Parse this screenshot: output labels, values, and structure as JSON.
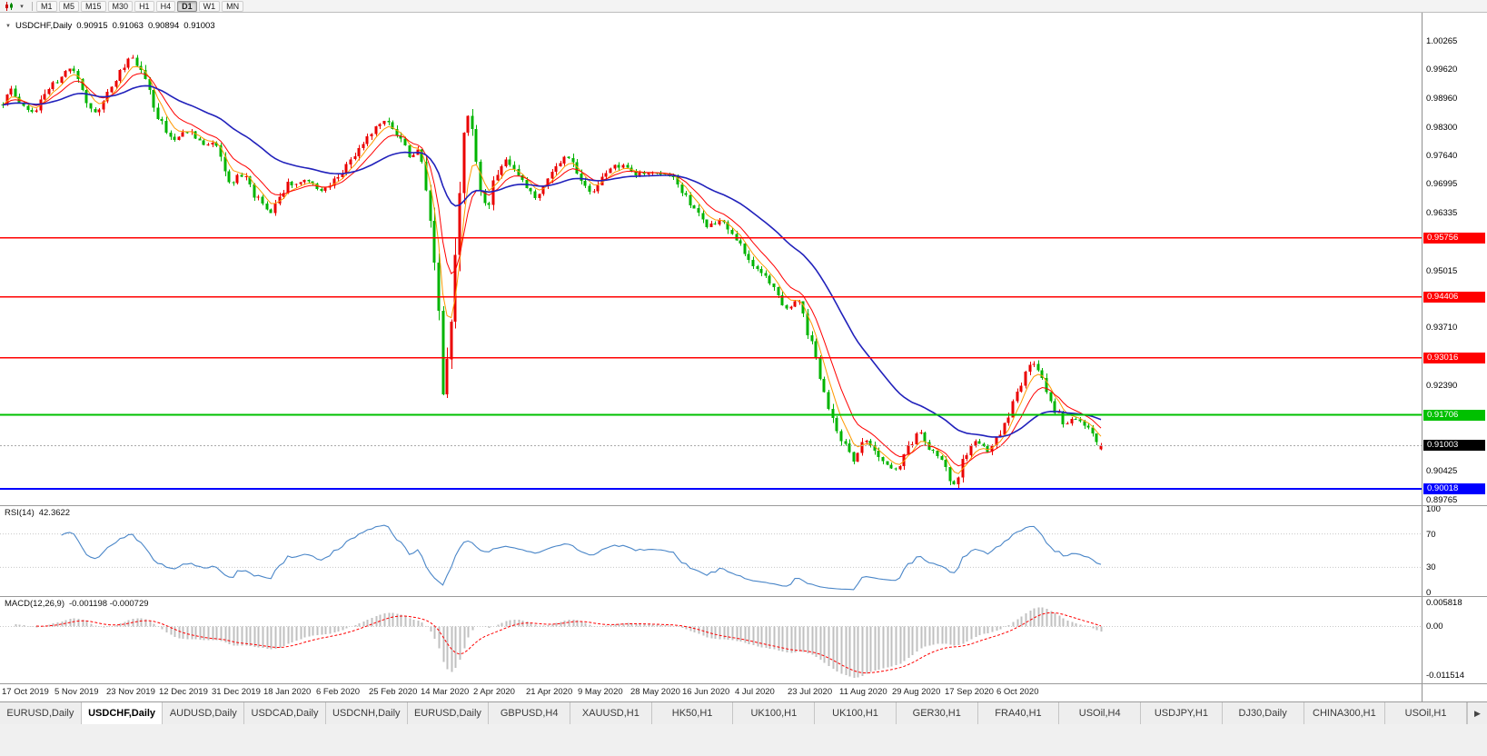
{
  "window": {
    "bg": "#f0f0f0",
    "chart_bg": "#ffffff"
  },
  "icons": {
    "collapse": "▼",
    "dropdown": "▾",
    "scroll_right": "▶"
  },
  "colors": {
    "candle_up": "#ea0000",
    "candle_down": "#00b400",
    "ma_fast": "#ff9900",
    "ma_mid": "#ff0000",
    "ma_slow": "#2121bb",
    "rsi_line": "#4a86c8",
    "macd_hist": "#c0c0c0",
    "macd_signal": "#ff0000",
    "bid_badge_bg": "#000000",
    "accent_red": "#ff0000",
    "accent_green": "#00c000",
    "accent_blue": "#0000ff"
  },
  "toolbar": {
    "timeframes": [
      "M1",
      "M5",
      "M15",
      "M30",
      "H1",
      "H4",
      "D1",
      "W1",
      "MN"
    ],
    "active_timeframe": "D1"
  },
  "chart": {
    "quote": {
      "symbol": "USDCHF,Daily",
      "open": "0.90915",
      "high": "0.91063",
      "low": "0.90894",
      "close": "0.91003"
    },
    "price_axis_ticks": [
      "1.00265",
      "0.99620",
      "0.98960",
      "0.98300",
      "0.97640",
      "0.96995",
      "0.96335",
      "0.95015",
      "0.93710",
      "0.92390",
      "0.90425",
      "0.89765"
    ],
    "hlines": [
      {
        "label": "0.95756",
        "price": 0.95756,
        "color": "#ff0000",
        "width": 1.4
      },
      {
        "label": "0.94406",
        "price": 0.94406,
        "color": "#ff0000",
        "width": 1.4
      },
      {
        "label": "0.93016",
        "price": 0.93016,
        "color": "#ff0000",
        "width": 1.4
      },
      {
        "label": "0.91706",
        "price": 0.91706,
        "color": "#00c000",
        "width": 2
      },
      {
        "label": "0.90018",
        "price": 0.90018,
        "color": "#0000ff",
        "width": 2
      }
    ],
    "bid_line": {
      "label": "0.91003",
      "price": 0.91003
    },
    "dates": [
      "17 Oct 2019",
      "5 Nov 2019",
      "23 Nov 2019",
      "12 Dec 2019",
      "31 Dec 2019",
      "18 Jan 2020",
      "6 Feb 2020",
      "25 Feb 2020",
      "14 Mar 2020",
      "2 Apr 2020",
      "21 Apr 2020",
      "9 May 2020",
      "28 May 2020",
      "16 Jun 2020",
      "4 Jul 2020",
      "23 Jul 2020",
      "11 Aug 2020",
      "29 Aug 2020",
      "17 Sep 2020",
      "6 Oct 2020"
    ]
  },
  "rsi": {
    "label": "RSI(14)",
    "value_text": "42.3622",
    "axis": [
      "100",
      "70",
      "30",
      "0"
    ],
    "levels": [
      70,
      30
    ]
  },
  "macd": {
    "label": "MACD(12,26,9)",
    "values_text": "-0.001198 -0.000729",
    "axis": [
      "0.005818",
      "0.00",
      "-0.011514"
    ]
  },
  "tabs": {
    "active_index": 1,
    "items": [
      "EURUSD,Daily",
      "USDCHF,Daily",
      "AUDUSD,Daily",
      "USDCAD,Daily",
      "USDCNH,Daily",
      "EURUSD,Daily",
      "GBPUSD,H4",
      "XAUUSD,H1",
      "HK50,H1",
      "UK100,H1",
      "UK100,H1",
      "GER30,H1",
      "FRA40,H1",
      "USOil,H4",
      "USDJPY,H1",
      "DJ30,Daily",
      "CHINA300,H1",
      "USOil,H1"
    ]
  },
  "chart_data": {
    "type": "candlestick",
    "symbol": "USDCHF",
    "timeframe": "Daily",
    "visible_range": {
      "start": "17 Oct 2019",
      "end": "6 Oct 2020"
    },
    "last_candle": {
      "open": 0.90915,
      "high": 0.91063,
      "low": 0.90894,
      "close": 0.91003
    },
    "support_resistance_levels": [
      0.95756,
      0.94406,
      0.93016,
      0.91706,
      0.90018
    ],
    "indicators": {
      "rsi14": 42.3622,
      "macd_main": -0.001198,
      "macd_signal": -0.000729
    },
    "price_path": [
      [
        2,
        0.9878
      ],
      [
        12,
        0.9912
      ],
      [
        24,
        0.9886
      ],
      [
        38,
        0.9862
      ],
      [
        52,
        0.9916
      ],
      [
        68,
        0.9948
      ],
      [
        80,
        0.9962
      ],
      [
        92,
        0.9898
      ],
      [
        104,
        0.9856
      ],
      [
        118,
        0.9906
      ],
      [
        132,
        0.9958
      ],
      [
        145,
        0.9994
      ],
      [
        158,
        0.9952
      ],
      [
        172,
        0.9864
      ],
      [
        188,
        0.98
      ],
      [
        205,
        0.9823
      ],
      [
        222,
        0.9796
      ],
      [
        238,
        0.9791
      ],
      [
        252,
        0.9702
      ],
      [
        268,
        0.9722
      ],
      [
        282,
        0.9668
      ],
      [
        298,
        0.9638
      ],
      [
        315,
        0.9696
      ],
      [
        335,
        0.9707
      ],
      [
        355,
        0.9686
      ],
      [
        375,
        0.9723
      ],
      [
        395,
        0.9776
      ],
      [
        412,
        0.983
      ],
      [
        425,
        0.9847
      ],
      [
        438,
        0.9808
      ],
      [
        452,
        0.9762
      ],
      [
        462,
        0.978
      ],
      [
        470,
        0.969
      ],
      [
        477,
        0.956
      ],
      [
        483,
        0.938
      ],
      [
        488,
        0.92
      ],
      [
        493,
        0.931
      ],
      [
        498,
        0.942
      ],
      [
        503,
        0.956
      ],
      [
        509,
        0.978
      ],
      [
        513,
        0.9862
      ],
      [
        519,
        0.984
      ],
      [
        527,
        0.9705
      ],
      [
        536,
        0.9642
      ],
      [
        546,
        0.972
      ],
      [
        556,
        0.9758
      ],
      [
        566,
        0.9738
      ],
      [
        578,
        0.97
      ],
      [
        588,
        0.9664
      ],
      [
        600,
        0.969
      ],
      [
        612,
        0.9744
      ],
      [
        625,
        0.9768
      ],
      [
        638,
        0.9702
      ],
      [
        650,
        0.9674
      ],
      [
        662,
        0.9712
      ],
      [
        675,
        0.9738
      ],
      [
        688,
        0.9744
      ],
      [
        700,
        0.972
      ],
      [
        712,
        0.9722
      ],
      [
        725,
        0.973
      ],
      [
        738,
        0.9716
      ],
      [
        750,
        0.9688
      ],
      [
        765,
        0.9636
      ],
      [
        780,
        0.96
      ],
      [
        795,
        0.9618
      ],
      [
        808,
        0.9576
      ],
      [
        820,
        0.9546
      ],
      [
        835,
        0.95
      ],
      [
        850,
        0.9466
      ],
      [
        865,
        0.9416
      ],
      [
        878,
        0.9438
      ],
      [
        892,
        0.934
      ],
      [
        905,
        0.924
      ],
      [
        918,
        0.9152
      ],
      [
        930,
        0.91
      ],
      [
        942,
        0.9062
      ],
      [
        952,
        0.9124
      ],
      [
        963,
        0.9082
      ],
      [
        975,
        0.9052
      ],
      [
        988,
        0.904
      ],
      [
        1000,
        0.9096
      ],
      [
        1012,
        0.9134
      ],
      [
        1025,
        0.9092
      ],
      [
        1038,
        0.906
      ],
      [
        1050,
        0.9008
      ],
      [
        1062,
        0.9074
      ],
      [
        1075,
        0.9114
      ],
      [
        1088,
        0.9088
      ],
      [
        1100,
        0.9122
      ],
      [
        1112,
        0.918
      ],
      [
        1125,
        0.9246
      ],
      [
        1137,
        0.9294
      ],
      [
        1148,
        0.9246
      ],
      [
        1160,
        0.9186
      ],
      [
        1172,
        0.9152
      ],
      [
        1185,
        0.9158
      ],
      [
        1198,
        0.9144
      ],
      [
        1210,
        0.9102
      ]
    ]
  }
}
